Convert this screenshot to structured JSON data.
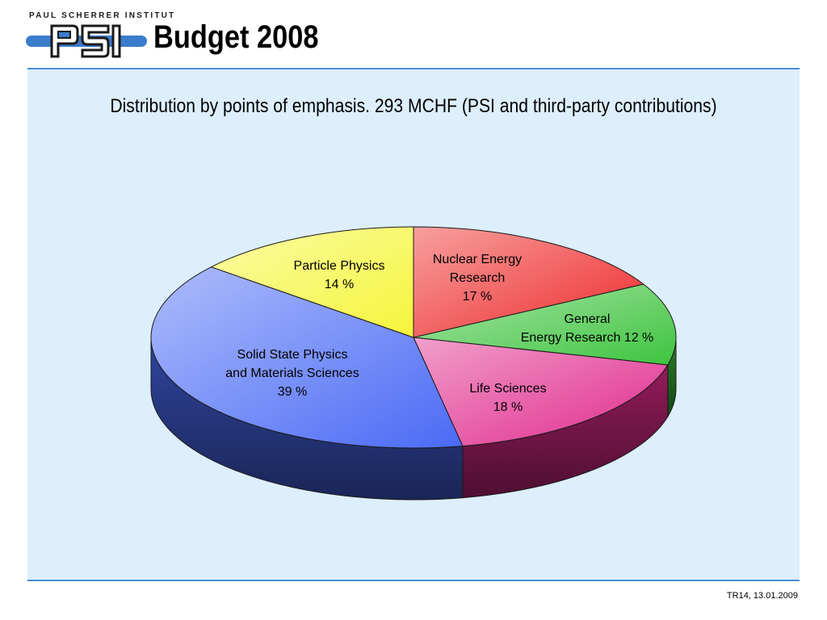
{
  "logo": {
    "institute_name": "PAUL SCHERRER INSTITUT",
    "mark": "PSI",
    "colors": {
      "blue": "#3b7ccc",
      "dark": "#1a1a1a"
    }
  },
  "slide": {
    "title": "Budget 2008",
    "footer": "TR14, 13.01.2009"
  },
  "chart_data": {
    "type": "pie",
    "title": "Distribution by points of emphasis. 293 MCHF (PSI and third-party contributions)",
    "style": "3d",
    "slices": [
      {
        "lines": [
          "Nuclear Energy",
          "Research",
          "17 %"
        ],
        "value": 17,
        "color": "#ee2a2a"
      },
      {
        "lines": [
          "General",
          "Energy Research 12 %"
        ],
        "value": 12,
        "color": "#3ec43e"
      },
      {
        "lines": [
          "Life Sciences",
          "18 %"
        ],
        "value": 18,
        "color": "#e02a8c"
      },
      {
        "lines": [
          "Solid State Physics",
          "and Materials Sciences",
          "39 %"
        ],
        "value": 39,
        "color": "#4a6af5"
      },
      {
        "lines": [
          "Particle Physics",
          "14 %"
        ],
        "value": 14,
        "color": "#f5f53a"
      }
    ]
  }
}
